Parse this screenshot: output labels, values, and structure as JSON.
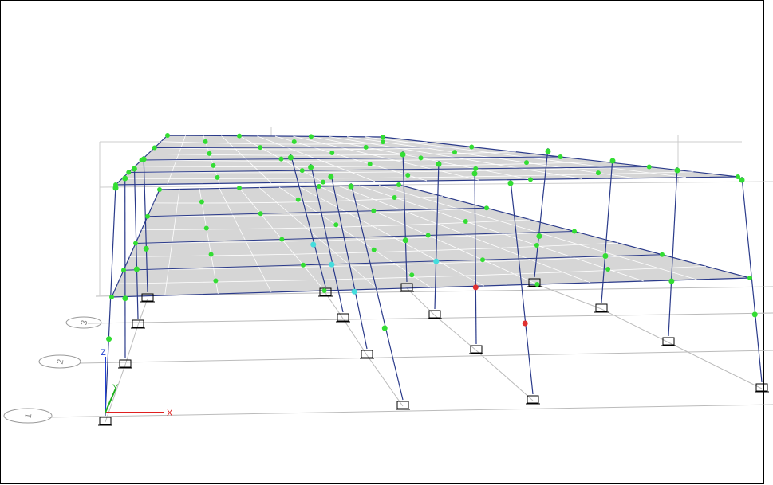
{
  "viewport": {
    "axes": {
      "x": "X",
      "y": "Y",
      "z": "Z"
    },
    "grid_bubbles": [
      "1",
      "2",
      "3"
    ]
  }
}
